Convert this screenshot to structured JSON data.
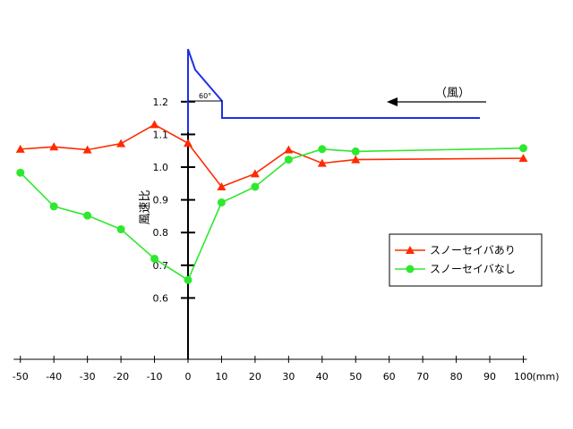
{
  "chart_data": {
    "type": "line",
    "title": "",
    "xlabel": "",
    "x_unit": "(mm)",
    "ylabel": "風速比",
    "xlim": [
      -52,
      100
    ],
    "ylim": [
      0.55,
      1.25
    ],
    "x_ticks": [
      -50,
      -40,
      -30,
      -20,
      -10,
      0,
      10,
      20,
      30,
      40,
      50,
      60,
      70,
      80,
      90,
      100
    ],
    "y_ticks": [
      0.6,
      0.7,
      0.8,
      0.9,
      1.0,
      1.1,
      1.2
    ],
    "y_tick_labels": [
      "0.6",
      "0.7",
      "0.8",
      "0.9",
      "1.0",
      "1.1",
      "1.2"
    ],
    "legend_position": "right",
    "series": [
      {
        "name": "スノーセイバあり",
        "color": "#ff2a00",
        "marker": "triangle",
        "x": [
          -50,
          -40,
          -30,
          -20,
          -10,
          0,
          10,
          20,
          30,
          40,
          50,
          100
        ],
        "y": [
          1.055,
          1.062,
          1.053,
          1.072,
          1.13,
          1.073,
          0.94,
          0.98,
          1.053,
          1.012,
          1.023,
          1.027
        ]
      },
      {
        "name": "スノーセイバなし",
        "color": "#2ee82e",
        "marker": "circle",
        "x": [
          -50,
          -40,
          -30,
          -20,
          -10,
          0,
          10,
          20,
          30,
          40,
          50,
          100
        ],
        "y": [
          0.983,
          0.88,
          0.852,
          0.81,
          0.72,
          0.655,
          0.892,
          0.94,
          1.023,
          1.055,
          1.048,
          1.058
        ]
      }
    ],
    "annotations": {
      "wind_label": "（風）",
      "angle_label": "60°",
      "profile_color": "#1f2fe8"
    }
  }
}
